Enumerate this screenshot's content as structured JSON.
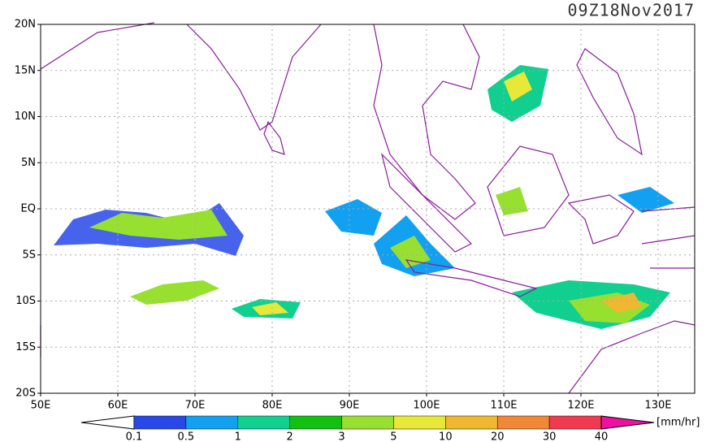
{
  "header": {
    "title": "09Z18Nov2017"
  },
  "map": {
    "lat_labels": [
      "20N",
      "15N",
      "10N",
      "5N",
      "EQ",
      "5S",
      "10S",
      "15S",
      "20S"
    ],
    "lon_labels": [
      "50E",
      "60E",
      "70E",
      "80E",
      "90E",
      "100E",
      "110E",
      "120E",
      "130E"
    ]
  },
  "legend": {
    "labels": [
      "0.1",
      "0.5",
      "1",
      "2",
      "3",
      "5",
      "10",
      "20",
      "30",
      "40"
    ],
    "colors": [
      "#ffffff",
      "#2848e8",
      "#12a0f0",
      "#10cf8f",
      "#12c012",
      "#98e030",
      "#e8e838",
      "#f0b830",
      "#f08838",
      "#f03a50",
      "#f010a0"
    ],
    "unit": "[mm/hr]"
  }
}
